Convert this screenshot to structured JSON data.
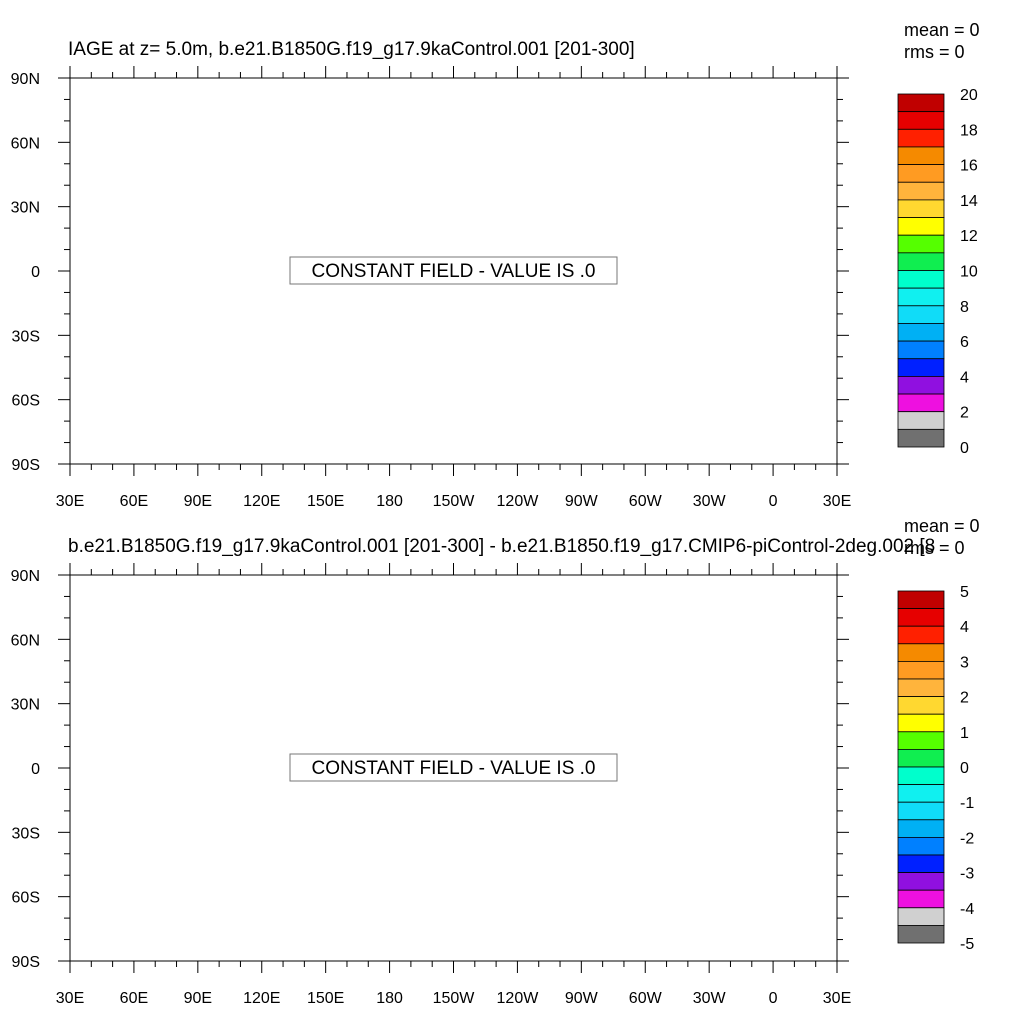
{
  "chart_data": [
    {
      "type": "heatmap",
      "title": "IAGE at z=   5.0m, b.e21.B1850G.f19_g17.9kaControl.001 [201-300]",
      "stats": {
        "mean": "mean = 0",
        "rms": "rms = 0"
      },
      "message": "CONSTANT FIELD - VALUE IS .0",
      "xlabel": "",
      "ylabel": "",
      "x_ticks": [
        "30E",
        "60E",
        "90E",
        "120E",
        "150E",
        "180",
        "150W",
        "120W",
        "90W",
        "60W",
        "30W",
        "0",
        "30E"
      ],
      "y_ticks": [
        "90N",
        "60N",
        "30N",
        "0",
        "30S",
        "60S",
        "90S"
      ],
      "colorbar": {
        "levels": [
          0,
          1.25,
          2.5,
          3.75,
          5,
          6.25,
          7.5,
          8.75,
          10,
          11.25,
          12.5,
          13.75,
          15,
          16.25,
          17.5,
          18.75,
          20
        ],
        "labels": [
          "0",
          "2",
          "4",
          "6",
          "8",
          "10",
          "12",
          "14",
          "16",
          "18",
          "20"
        ]
      }
    },
    {
      "type": "heatmap",
      "title": "b.e21.B1850G.f19_g17.9kaControl.001 [201-300] - b.e21.B1850.f19_g17.CMIP6-piControl-2deg.002 [8",
      "stats": {
        "mean": "mean = 0",
        "rms": "rms = 0"
      },
      "message": "CONSTANT FIELD - VALUE IS .0",
      "xlabel": "",
      "ylabel": "",
      "x_ticks": [
        "30E",
        "60E",
        "90E",
        "120E",
        "150E",
        "180",
        "150W",
        "120W",
        "90W",
        "60W",
        "30W",
        "0",
        "30E"
      ],
      "y_ticks": [
        "90N",
        "60N",
        "30N",
        "0",
        "30S",
        "60S",
        "90S"
      ],
      "colorbar": {
        "levels": [
          -5,
          -4.5,
          -4,
          -3.5,
          -3,
          -2.5,
          -2,
          -1.5,
          -1,
          -0.5,
          0,
          0.5,
          1,
          1.5,
          2,
          2.5,
          3,
          3.5,
          4,
          4.5,
          5
        ],
        "labels": [
          "-5",
          "-4",
          "-3",
          "-2",
          "-1",
          "0",
          "1",
          "2",
          "3",
          "4",
          "5"
        ]
      }
    }
  ],
  "colors": {
    "palette_top_to_bottom": [
      "#c00000",
      "#e60000",
      "#ff2000",
      "#f58a00",
      "#ff9b22",
      "#ffb43c",
      "#ffd830",
      "#ffff00",
      "#55ff00",
      "#10ee50",
      "#00ffcc",
      "#10f0f0",
      "#10dcf8",
      "#00b0f4",
      "#0080ff",
      "#0020ff",
      "#9010e0",
      "#ee10e0",
      "#d0d0d0",
      "#707070"
    ]
  }
}
